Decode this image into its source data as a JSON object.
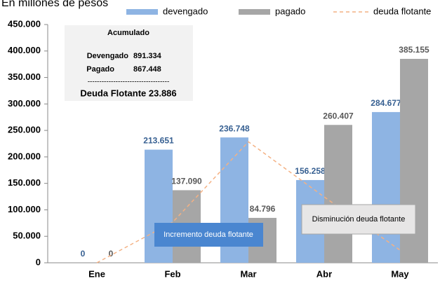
{
  "chart_data": {
    "type": "bar",
    "title": "En millones de pesos",
    "categories": [
      "Ene",
      "Feb",
      "Mar",
      "Abr",
      "May"
    ],
    "series": [
      {
        "name": "devengado",
        "type": "bar",
        "color": "#8eb4e3",
        "label_color": "#376092",
        "values": [
          0,
          213651,
          236748,
          156258,
          284677
        ],
        "value_labels": [
          "0",
          "213.651",
          "236.748",
          "156.258",
          "284.677"
        ]
      },
      {
        "name": "pagado",
        "type": "bar",
        "color": "#a6a6a6",
        "label_color": "#595959",
        "values": [
          0,
          137090,
          84796,
          260407,
          385155
        ],
        "value_labels": [
          "0",
          "137.090",
          "84.796",
          "260.407",
          "385.155"
        ]
      },
      {
        "name": "deuda flotante",
        "type": "line",
        "color": "#f4b183",
        "dashed": true,
        "values": [
          0,
          76561,
          228513,
          124364,
          23886
        ]
      }
    ],
    "ylim": [
      0,
      450000
    ],
    "yticks": [
      {
        "value": 0,
        "label": "0"
      },
      {
        "value": 50000,
        "label": "50.000"
      },
      {
        "value": 100000,
        "label": "100.000"
      },
      {
        "value": 150000,
        "label": "150.000"
      },
      {
        "value": 200000,
        "label": "200.000"
      },
      {
        "value": 250000,
        "label": "250.000"
      },
      {
        "value": 300000,
        "label": "300.000"
      },
      {
        "value": 350000,
        "label": "350.000"
      },
      {
        "value": 400000,
        "label": "400.000"
      },
      {
        "value": 450000,
        "label": "450.000"
      }
    ],
    "summary_box": {
      "title": "Acumulado",
      "lines": [
        [
          "Devengado",
          "891.334"
        ],
        [
          "Pagado",
          "867.448"
        ]
      ],
      "separator": "-----------------------------------",
      "total": "Deuda Flotante 23.886"
    },
    "callouts": {
      "increase": "Incremento deuda flotante",
      "decrease": "Disminución deuda flotante"
    }
  }
}
